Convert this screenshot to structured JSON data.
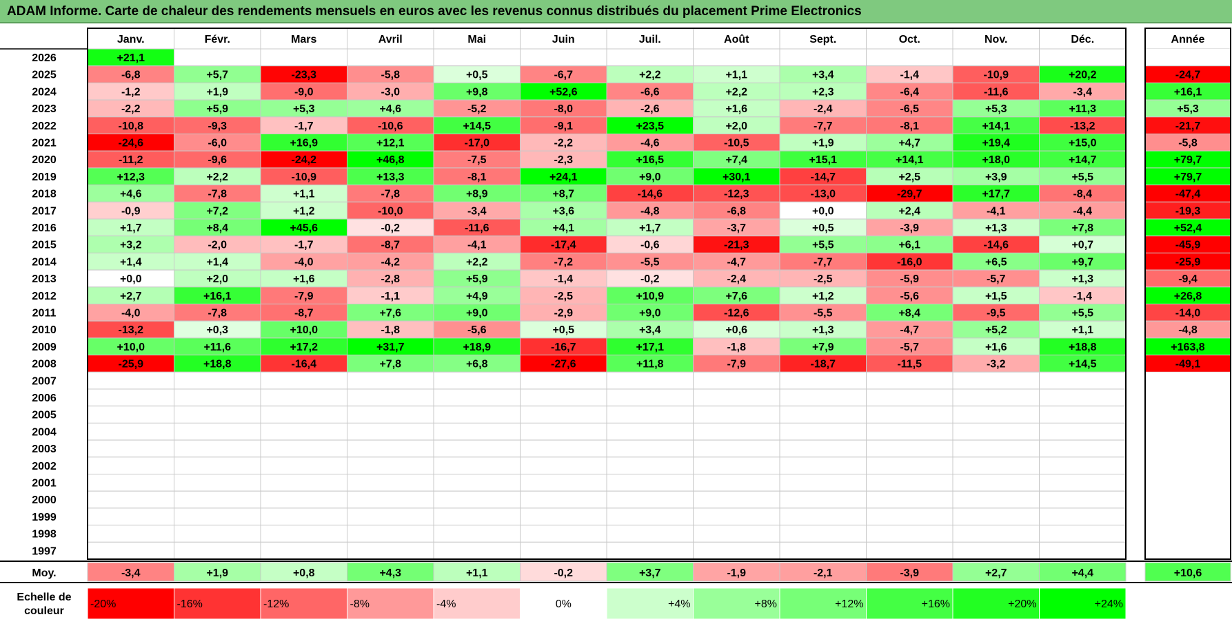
{
  "title": "ADAM Informe. Carte de chaleur des rendements mensuels en euros avec les revenus connus distribués du placement Prime Electronics",
  "chart_data": {
    "type": "heatmap",
    "months": [
      "Janv.",
      "Févr.",
      "Mars",
      "Avril",
      "Mai",
      "Juin",
      "Juil.",
      "Août",
      "Sept.",
      "Oct.",
      "Nov.",
      "Déc."
    ],
    "annual_header": "Année",
    "avg_label": "Moy.",
    "years": [
      {
        "year": "2026",
        "values": [
          "+21,1",
          "",
          "",
          "",
          "",
          "",
          "",
          "",
          "",
          "",
          "",
          ""
        ],
        "annual": ""
      },
      {
        "year": "2025",
        "values": [
          "-6,8",
          "+5,7",
          "-23,3",
          "-5,8",
          "+0,5",
          "-6,7",
          "+2,2",
          "+1,1",
          "+3,4",
          "-1,4",
          "-10,9",
          "+20,2"
        ],
        "annual": "-24,7"
      },
      {
        "year": "2024",
        "values": [
          "-1,2",
          "+1,9",
          "-9,0",
          "-3,0",
          "+9,8",
          "+52,6",
          "-6,6",
          "+2,2",
          "+2,3",
          "-6,4",
          "-11,6",
          "-3,4"
        ],
        "annual": "+16,1"
      },
      {
        "year": "2023",
        "values": [
          "-2,2",
          "+5,9",
          "+5,3",
          "+4,6",
          "-5,2",
          "-8,0",
          "-2,6",
          "+1,6",
          "-2,4",
          "-6,5",
          "+5,3",
          "+11,3"
        ],
        "annual": "+5,3"
      },
      {
        "year": "2022",
        "values": [
          "-10,8",
          "-9,3",
          "-1,7",
          "-10,6",
          "+14,5",
          "-9,1",
          "+23,5",
          "+2,0",
          "-7,7",
          "-8,1",
          "+14,1",
          "-13,2"
        ],
        "annual": "-21,7"
      },
      {
        "year": "2021",
        "values": [
          "-24,6",
          "-6,0",
          "+16,9",
          "+12,1",
          "-17,0",
          "-2,2",
          "-4,6",
          "-10,5",
          "+1,9",
          "+4,7",
          "+19,4",
          "+15,0"
        ],
        "annual": "-5,8"
      },
      {
        "year": "2020",
        "values": [
          "-11,2",
          "-9,6",
          "-24,2",
          "+46,8",
          "-7,5",
          "-2,3",
          "+16,5",
          "+7,4",
          "+15,1",
          "+14,1",
          "+18,0",
          "+14,7"
        ],
        "annual": "+79,7"
      },
      {
        "year": "2019",
        "values": [
          "+12,3",
          "+2,2",
          "-10,9",
          "+13,3",
          "-8,1",
          "+24,1",
          "+9,0",
          "+30,1",
          "-14,7",
          "+2,5",
          "+3,9",
          "+5,5"
        ],
        "annual": "+79,7"
      },
      {
        "year": "2018",
        "values": [
          "+4,6",
          "-7,8",
          "+1,1",
          "-7,8",
          "+8,9",
          "+8,7",
          "-14,6",
          "-12,3",
          "-13,0",
          "-29,7",
          "+17,7",
          "-8,4"
        ],
        "annual": "-47,4"
      },
      {
        "year": "2017",
        "values": [
          "-0,9",
          "+7,2",
          "+1,2",
          "-10,0",
          "-3,4",
          "+3,6",
          "-4,8",
          "-6,8",
          "+0,0",
          "+2,4",
          "-4,1",
          "-4,4"
        ],
        "annual": "-19,3"
      },
      {
        "year": "2016",
        "values": [
          "+1,7",
          "+8,4",
          "+45,6",
          "-0,2",
          "-11,6",
          "+4,1",
          "+1,7",
          "-3,7",
          "+0,5",
          "-3,9",
          "+1,3",
          "+7,8"
        ],
        "annual": "+52,4"
      },
      {
        "year": "2015",
        "values": [
          "+3,2",
          "-2,0",
          "-1,7",
          "-8,7",
          "-4,1",
          "-17,4",
          "-0,6",
          "-21,3",
          "+5,5",
          "+6,1",
          "-14,6",
          "+0,7"
        ],
        "annual": "-45,9"
      },
      {
        "year": "2014",
        "values": [
          "+1,4",
          "+1,4",
          "-4,0",
          "-4,2",
          "+2,2",
          "-7,2",
          "-5,5",
          "-4,7",
          "-7,7",
          "-16,0",
          "+6,5",
          "+9,7"
        ],
        "annual": "-25,9"
      },
      {
        "year": "2013",
        "values": [
          "+0,0",
          "+2,0",
          "+1,6",
          "-2,8",
          "+5,9",
          "-1,4",
          "-0,2",
          "-2,4",
          "-2,5",
          "-5,9",
          "-5,7",
          "+1,3"
        ],
        "annual": "-9,4"
      },
      {
        "year": "2012",
        "values": [
          "+2,7",
          "+16,1",
          "-7,9",
          "-1,1",
          "+4,9",
          "-2,5",
          "+10,9",
          "+7,6",
          "+1,2",
          "-5,6",
          "+1,5",
          "-1,4"
        ],
        "annual": "+26,8"
      },
      {
        "year": "2011",
        "values": [
          "-4,0",
          "-7,8",
          "-8,7",
          "+7,6",
          "+9,0",
          "-2,9",
          "+9,0",
          "-12,6",
          "-5,5",
          "+8,4",
          "-9,5",
          "+5,5"
        ],
        "annual": "-14,0"
      },
      {
        "year": "2010",
        "values": [
          "-13,2",
          "+0,3",
          "+10,0",
          "-1,8",
          "-5,6",
          "+0,5",
          "+3,4",
          "+0,6",
          "+1,3",
          "-4,7",
          "+5,2",
          "+1,1"
        ],
        "annual": "-4,8"
      },
      {
        "year": "2009",
        "values": [
          "+10,0",
          "+11,6",
          "+17,2",
          "+31,7",
          "+18,9",
          "-16,7",
          "+17,1",
          "-1,8",
          "+7,9",
          "-5,7",
          "+1,6",
          "+18,8"
        ],
        "annual": "+163,8"
      },
      {
        "year": "2008",
        "values": [
          "-25,9",
          "+18,8",
          "-16,4",
          "+7,8",
          "+6,8",
          "-27,6",
          "+11,8",
          "-7,9",
          "-18,7",
          "-11,5",
          "-3,2",
          "+14,5"
        ],
        "annual": "-49,1"
      },
      {
        "year": "2007",
        "values": [
          "",
          "",
          "",
          "",
          "",
          "",
          "",
          "",
          "",
          "",
          "",
          ""
        ],
        "annual": ""
      },
      {
        "year": "2006",
        "values": [
          "",
          "",
          "",
          "",
          "",
          "",
          "",
          "",
          "",
          "",
          "",
          ""
        ],
        "annual": ""
      },
      {
        "year": "2005",
        "values": [
          "",
          "",
          "",
          "",
          "",
          "",
          "",
          "",
          "",
          "",
          "",
          ""
        ],
        "annual": ""
      },
      {
        "year": "2004",
        "values": [
          "",
          "",
          "",
          "",
          "",
          "",
          "",
          "",
          "",
          "",
          "",
          ""
        ],
        "annual": ""
      },
      {
        "year": "2003",
        "values": [
          "",
          "",
          "",
          "",
          "",
          "",
          "",
          "",
          "",
          "",
          "",
          ""
        ],
        "annual": ""
      },
      {
        "year": "2002",
        "values": [
          "",
          "",
          "",
          "",
          "",
          "",
          "",
          "",
          "",
          "",
          "",
          ""
        ],
        "annual": ""
      },
      {
        "year": "2001",
        "values": [
          "",
          "",
          "",
          "",
          "",
          "",
          "",
          "",
          "",
          "",
          "",
          ""
        ],
        "annual": ""
      },
      {
        "year": "2000",
        "values": [
          "",
          "",
          "",
          "",
          "",
          "",
          "",
          "",
          "",
          "",
          "",
          ""
        ],
        "annual": ""
      },
      {
        "year": "1999",
        "values": [
          "",
          "",
          "",
          "",
          "",
          "",
          "",
          "",
          "",
          "",
          "",
          ""
        ],
        "annual": ""
      },
      {
        "year": "1998",
        "values": [
          "",
          "",
          "",
          "",
          "",
          "",
          "",
          "",
          "",
          "",
          "",
          ""
        ],
        "annual": ""
      },
      {
        "year": "1997",
        "values": [
          "",
          "",
          "",
          "",
          "",
          "",
          "",
          "",
          "",
          "",
          "",
          ""
        ],
        "annual": ""
      }
    ],
    "averages": [
      "-3,4",
      "+1,9",
      "+0,8",
      "+4,3",
      "+1,1",
      "-0,2",
      "+3,7",
      "-1,9",
      "-2,1",
      "-3,9",
      "+2,7",
      "+4,4"
    ],
    "annual_average": "+10,6",
    "scale": {
      "label_line1": "Echelle de",
      "label_line2": "couleur",
      "stops": [
        "-20%",
        "-16%",
        "-12%",
        "-8%",
        "-4%",
        "0%",
        "+4%",
        "+8%",
        "+12%",
        "+16%",
        "+20%",
        "+24%"
      ],
      "colors": [
        "#ff0000",
        "#ff3333",
        "#ff6666",
        "#ff9999",
        "#ffcccc",
        "#ffffff",
        "#ccffcc",
        "#99ff99",
        "#77ff77",
        "#44ff44",
        "#22ff22",
        "#00ff00"
      ]
    }
  }
}
